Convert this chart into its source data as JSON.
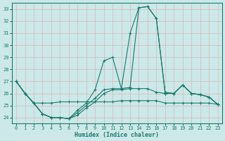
{
  "xlabel": "Humidex (Indice chaleur)",
  "ylabel": "",
  "bg_color": "#cce8e8",
  "grid_color": "#d4e8e8",
  "line_color": "#1a7a6e",
  "xlim": [
    -0.5,
    23.5
  ],
  "ylim": [
    23.5,
    33.5
  ],
  "yticks": [
    24,
    25,
    26,
    27,
    28,
    29,
    30,
    31,
    32,
    33
  ],
  "xticks": [
    0,
    1,
    2,
    3,
    4,
    5,
    6,
    7,
    8,
    9,
    10,
    11,
    12,
    13,
    14,
    15,
    16,
    17,
    18,
    19,
    20,
    21,
    22,
    23
  ],
  "lines": [
    [
      27.0,
      26.0,
      25.2,
      25.2,
      25.2,
      25.3,
      25.3,
      25.3,
      25.3,
      25.3,
      25.3,
      25.3,
      25.4,
      25.4,
      25.4,
      25.4,
      25.4,
      25.2,
      25.2,
      25.2,
      25.2,
      25.2,
      25.2,
      25.1
    ],
    [
      27.0,
      26.0,
      25.2,
      24.3,
      24.0,
      24.0,
      23.9,
      24.2,
      24.8,
      25.3,
      26.0,
      26.3,
      26.3,
      26.4,
      26.4,
      26.4,
      26.1,
      26.0,
      26.0,
      26.7,
      26.0,
      25.9,
      25.7,
      25.1
    ],
    [
      27.0,
      26.0,
      25.2,
      24.3,
      24.0,
      24.0,
      23.9,
      24.6,
      25.2,
      26.3,
      28.7,
      29.0,
      26.4,
      26.5,
      33.1,
      33.2,
      32.2,
      26.0,
      26.0,
      26.7,
      26.0,
      25.9,
      25.7,
      25.1
    ],
    [
      27.0,
      26.0,
      25.2,
      24.3,
      24.0,
      24.0,
      23.9,
      24.4,
      25.0,
      25.6,
      26.3,
      26.4,
      26.4,
      31.0,
      33.1,
      33.2,
      32.2,
      26.1,
      26.0,
      26.7,
      26.0,
      25.9,
      25.7,
      25.1
    ]
  ]
}
